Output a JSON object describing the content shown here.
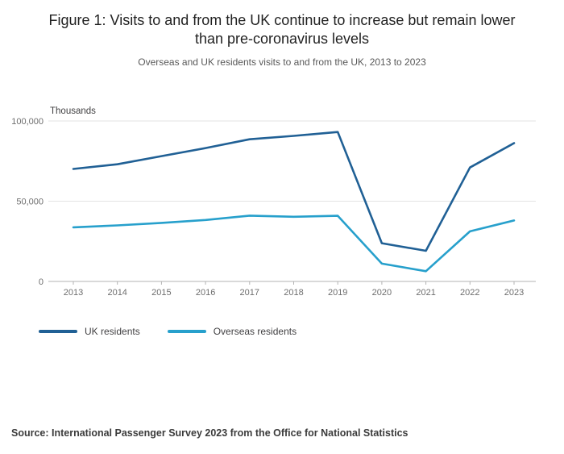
{
  "title": "Figure 1: Visits to and from the UK continue to increase but remain lower than pre-coronavirus levels",
  "subtitle": "Overseas and UK residents visits to and from the UK, 2013 to 2023",
  "source": "Source: International Passenger Survey 2023 from the Office for National Statistics",
  "chart_data": {
    "type": "line",
    "unit_label": "Thousands",
    "x": [
      2013,
      2014,
      2015,
      2016,
      2017,
      2018,
      2019,
      2020,
      2021,
      2022,
      2023
    ],
    "series": [
      {
        "name": "UK residents",
        "color": "#206095",
        "values": [
          70100,
          73000,
          78100,
          83100,
          88600,
          90700,
          93100,
          23800,
          19100,
          71000,
          86200
        ]
      },
      {
        "name": "Overseas residents",
        "color": "#27A0CC",
        "values": [
          33700,
          34900,
          36500,
          38300,
          41000,
          40300,
          40900,
          11100,
          6400,
          31200,
          38000
        ]
      }
    ],
    "ylim": [
      0,
      100000
    ],
    "yticks": [
      0,
      50000,
      100000
    ],
    "ytick_labels": [
      "0",
      "50,000",
      "100,000"
    ],
    "grid": true,
    "legend_position": "bottom"
  }
}
